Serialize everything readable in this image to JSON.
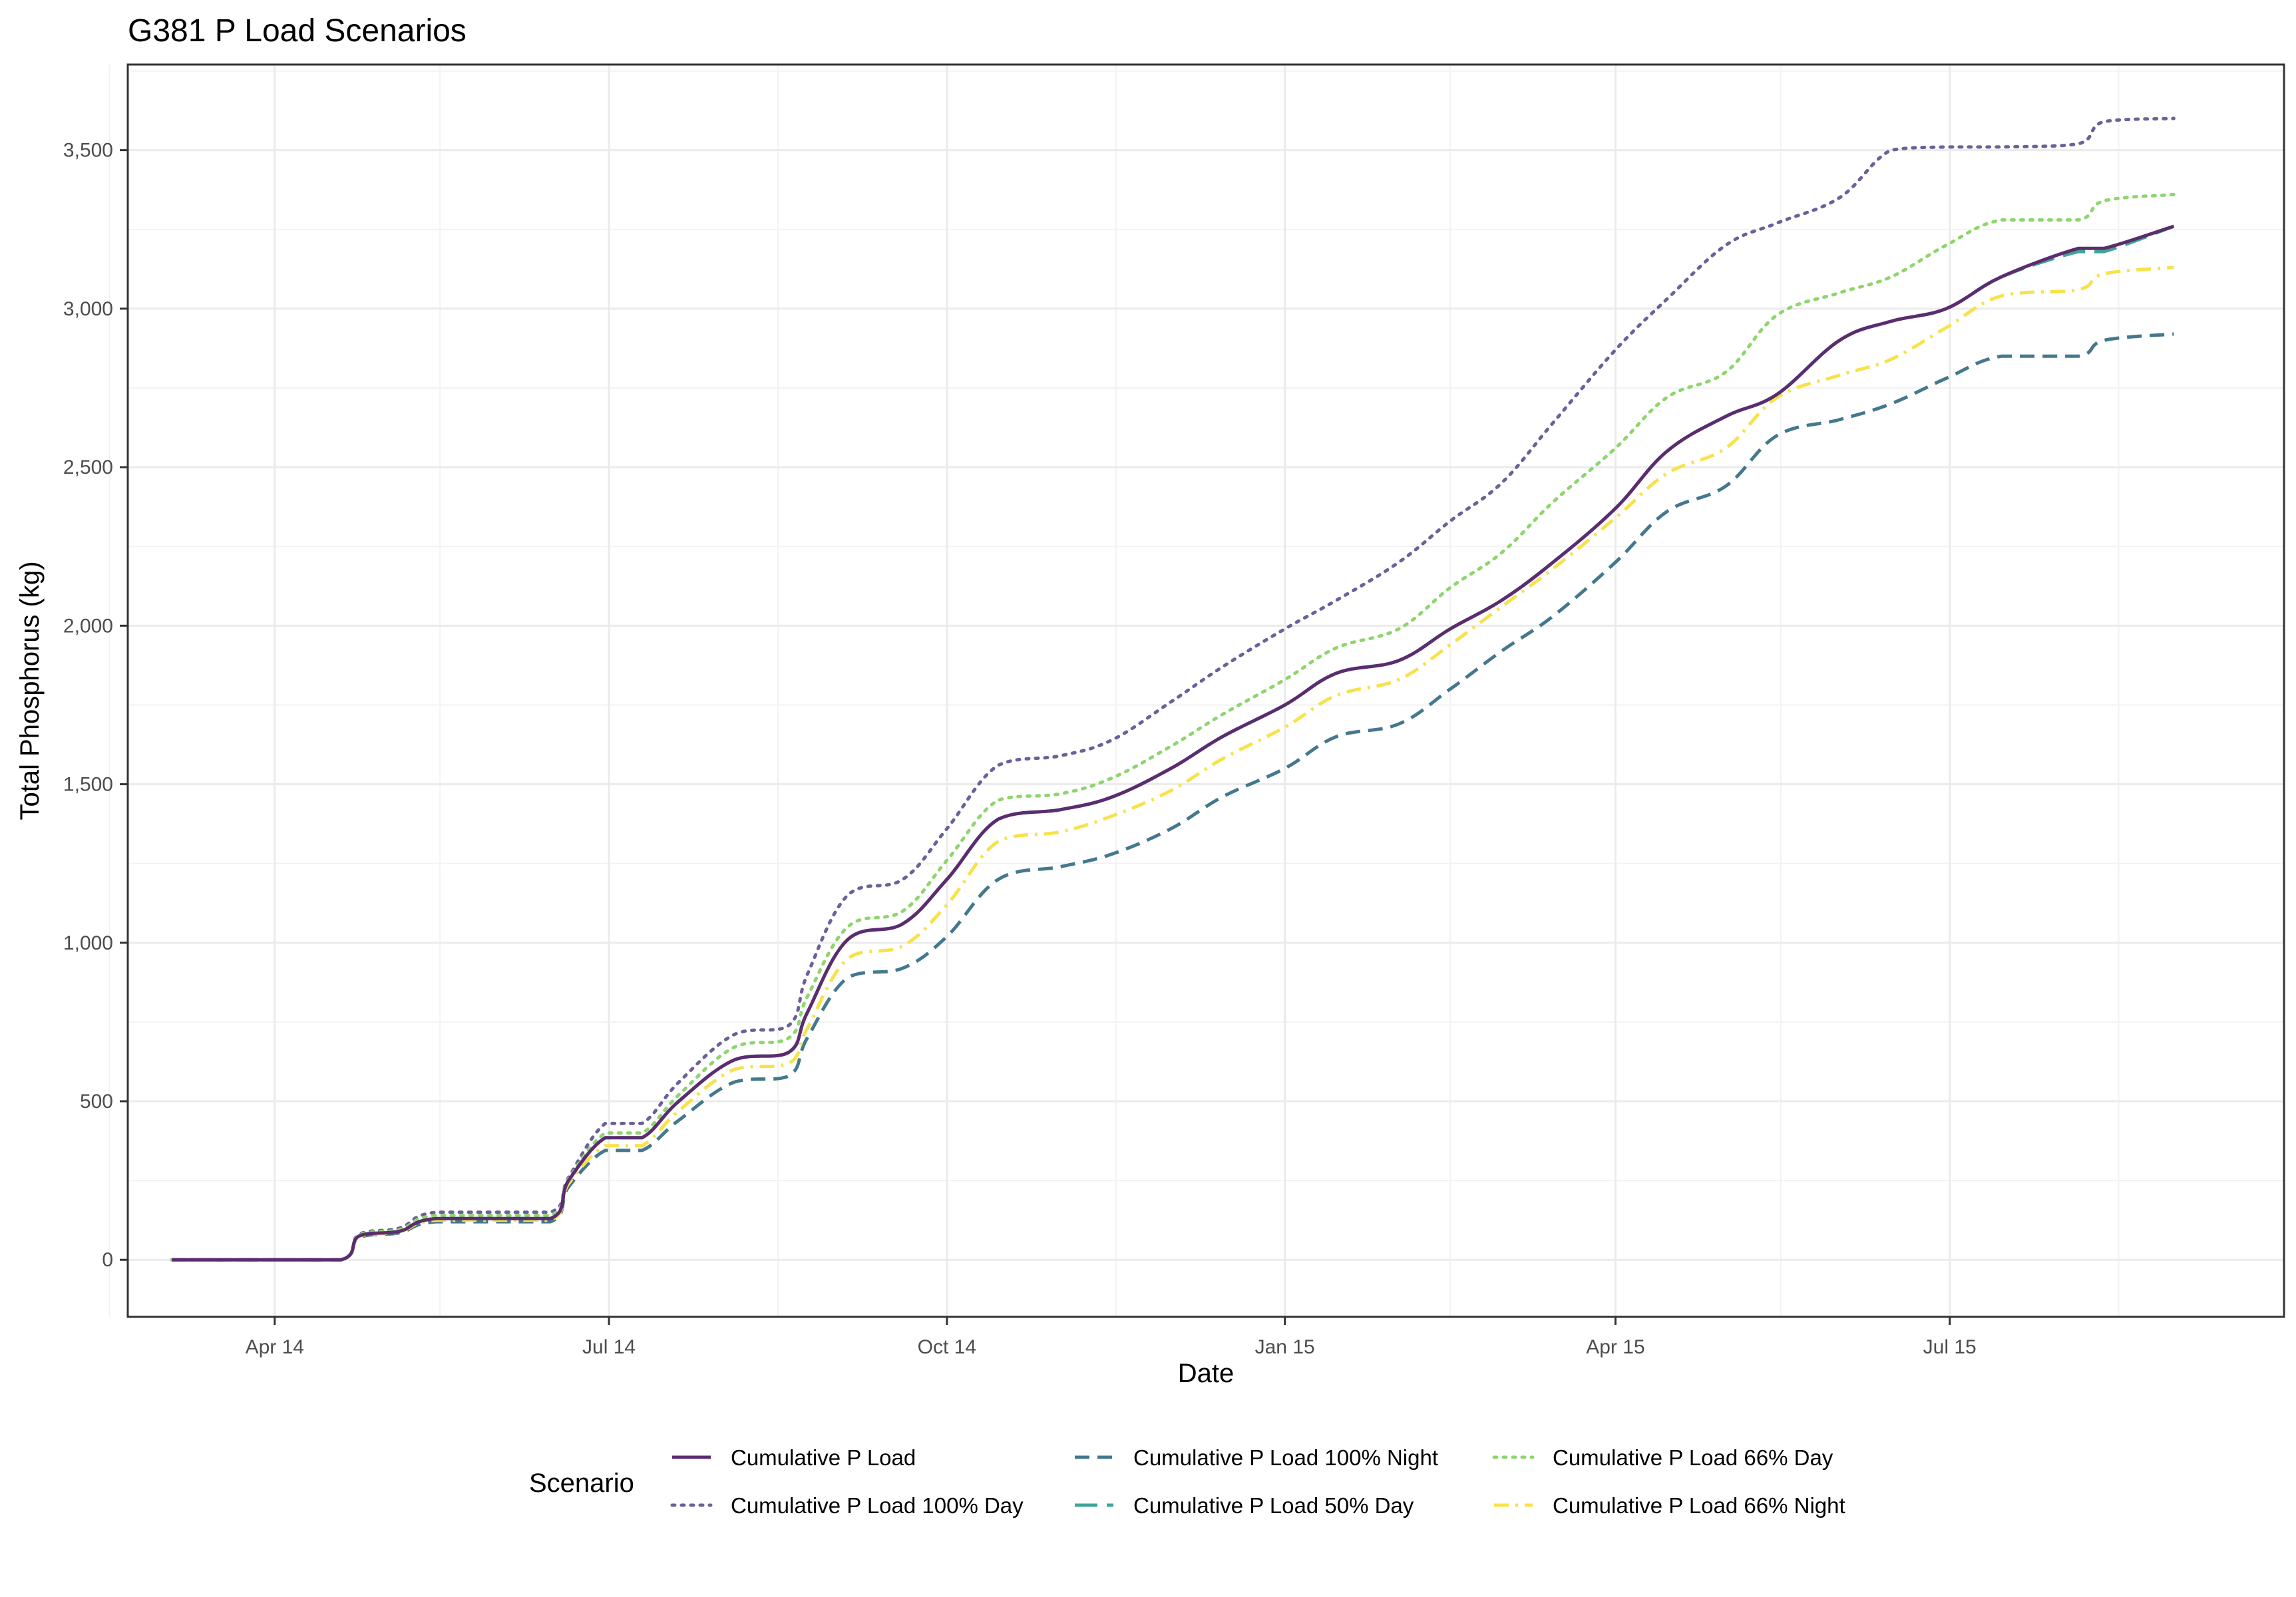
{
  "chart_data": {
    "type": "line",
    "title": "G381 P Load Scenarios",
    "xlabel": "Date",
    "ylabel": "Total Phosphorus (kg)",
    "xlim": [
      "2014-02-20",
      "2015-09-30"
    ],
    "ylim": [
      -180,
      3770
    ],
    "x_major_ticks": [
      {
        "date": "2014-04-01",
        "label": "Apr 14"
      },
      {
        "date": "2014-07-01",
        "label": "Jul 14"
      },
      {
        "date": "2014-10-01",
        "label": "Oct 14"
      },
      {
        "date": "2015-01-01",
        "label": "Jan 15"
      },
      {
        "date": "2015-04-01",
        "label": "Apr 15"
      },
      {
        "date": "2015-07-01",
        "label": "Jul 15"
      }
    ],
    "x_minor_ticks": [
      "2014-02-15",
      "2014-05-16",
      "2014-08-16",
      "2014-11-16",
      "2015-02-15",
      "2015-05-16",
      "2015-08-16"
    ],
    "y_major_ticks": [
      {
        "value": 0,
        "label": "0"
      },
      {
        "value": 500,
        "label": "500"
      },
      {
        "value": 1000,
        "label": "1,000"
      },
      {
        "value": 1500,
        "label": "1,500"
      },
      {
        "value": 2000,
        "label": "2,000"
      },
      {
        "value": 2500,
        "label": "2,500"
      },
      {
        "value": 3000,
        "label": "3,000"
      },
      {
        "value": 3500,
        "label": "3,500"
      }
    ],
    "y_minor_ticks": [
      250,
      750,
      1250,
      1750,
      2250,
      2750,
      3250,
      3750
    ],
    "grid": true,
    "legend": {
      "title": "Scenario",
      "position": "bottom"
    },
    "x": [
      "2014-03-04",
      "2014-04-19",
      "2014-04-24",
      "2014-05-05",
      "2014-05-15",
      "2014-06-15",
      "2014-06-20",
      "2014-06-30",
      "2014-07-10",
      "2014-07-20",
      "2014-08-04",
      "2014-08-19",
      "2014-08-24",
      "2014-09-04",
      "2014-09-19",
      "2014-10-01",
      "2014-10-15",
      "2014-11-01",
      "2014-11-15",
      "2014-12-01",
      "2014-12-15",
      "2015-01-01",
      "2015-01-15",
      "2015-02-01",
      "2015-02-15",
      "2015-03-01",
      "2015-03-15",
      "2015-04-01",
      "2015-04-15",
      "2015-05-01",
      "2015-05-15",
      "2015-06-01",
      "2015-06-15",
      "2015-06-30",
      "2015-07-15",
      "2015-08-05",
      "2015-08-12",
      "2015-08-31"
    ],
    "series": [
      {
        "name": "Cumulative P Load",
        "color": "#5b2c6f",
        "dash": "solid",
        "values": [
          0,
          0,
          75,
          90,
          130,
          130,
          250,
          385,
          385,
          500,
          630,
          655,
          780,
          1010,
          1060,
          1200,
          1390,
          1420,
          1460,
          1550,
          1650,
          1750,
          1850,
          1890,
          1990,
          2080,
          2200,
          2370,
          2550,
          2660,
          2730,
          2900,
          2960,
          3000,
          3100,
          3190,
          3190,
          3260
        ]
      },
      {
        "name": "Cumulative P Load 100% Day",
        "color": "#6b6099",
        "dash": "dotted",
        "values": [
          0,
          0,
          80,
          100,
          150,
          150,
          260,
          430,
          430,
          560,
          710,
          740,
          900,
          1150,
          1200,
          1360,
          1560,
          1590,
          1640,
          1760,
          1870,
          1990,
          2080,
          2200,
          2330,
          2450,
          2640,
          2870,
          3030,
          3200,
          3270,
          3350,
          3500,
          3510,
          3510,
          3520,
          3590,
          3600
        ]
      },
      {
        "name": "Cumulative P Load 100% Night",
        "color": "#44788e",
        "dash": "dashed",
        "values": [
          0,
          0,
          70,
          85,
          120,
          120,
          230,
          345,
          345,
          440,
          560,
          580,
          700,
          890,
          920,
          1020,
          1200,
          1240,
          1280,
          1360,
          1460,
          1550,
          1650,
          1690,
          1800,
          1920,
          2030,
          2200,
          2360,
          2440,
          2600,
          2650,
          2700,
          2780,
          2850,
          2850,
          2900,
          2920
        ]
      },
      {
        "name": "Cumulative P Load 50% Day",
        "color": "#40a596",
        "dash": "longdash",
        "values": [
          0,
          0,
          75,
          90,
          130,
          130,
          250,
          385,
          385,
          500,
          630,
          655,
          780,
          1010,
          1060,
          1200,
          1390,
          1420,
          1460,
          1550,
          1650,
          1750,
          1850,
          1890,
          1990,
          2080,
          2200,
          2370,
          2550,
          2660,
          2730,
          2900,
          2960,
          3000,
          3100,
          3180,
          3180,
          3260
        ]
      },
      {
        "name": "Cumulative P Load 66% Day",
        "color": "#8ed56e",
        "dash": "dotted",
        "values": [
          0,
          0,
          78,
          95,
          140,
          140,
          255,
          400,
          400,
          520,
          670,
          700,
          830,
          1050,
          1100,
          1260,
          1450,
          1470,
          1520,
          1620,
          1720,
          1830,
          1930,
          1990,
          2120,
          2230,
          2390,
          2560,
          2720,
          2800,
          2980,
          3050,
          3100,
          3200,
          3280,
          3280,
          3340,
          3360
        ]
      },
      {
        "name": "Cumulative P Load 66% Night",
        "color": "#f7e24b",
        "dash": "dashdot",
        "values": [
          0,
          0,
          72,
          88,
          125,
          125,
          240,
          360,
          360,
          470,
          600,
          620,
          730,
          950,
          990,
          1120,
          1320,
          1350,
          1400,
          1480,
          1580,
          1680,
          1780,
          1830,
          1940,
          2060,
          2180,
          2340,
          2480,
          2560,
          2720,
          2790,
          2840,
          2940,
          3040,
          3060,
          3110,
          3130
        ]
      }
    ]
  }
}
